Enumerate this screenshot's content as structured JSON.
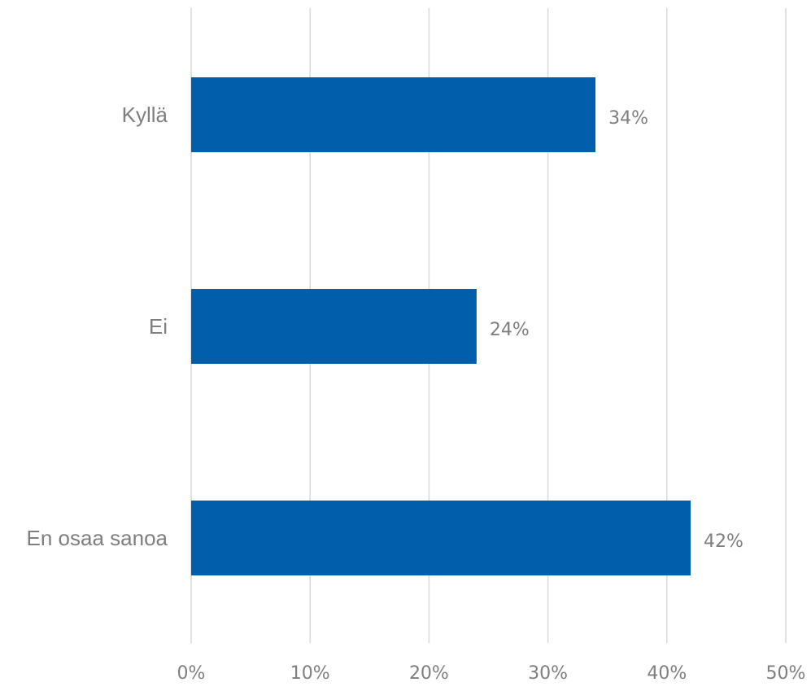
{
  "chart_data": {
    "type": "bar",
    "orientation": "horizontal",
    "categories": [
      "Kyllä",
      "Ei",
      "En osaa sanoa"
    ],
    "values": [
      34,
      24,
      42
    ],
    "data_labels": [
      "34%",
      "24%",
      "42%"
    ],
    "x_ticks": [
      0,
      10,
      20,
      30,
      40,
      50
    ],
    "x_tick_labels": [
      "0%",
      "10%",
      "20%",
      "30%",
      "40%",
      "50%"
    ],
    "xlim": [
      0,
      50
    ],
    "grid": true,
    "bar_color": "#005EAA",
    "grid_color": "#D9D9D9",
    "text_color": "#7F7F7F"
  }
}
